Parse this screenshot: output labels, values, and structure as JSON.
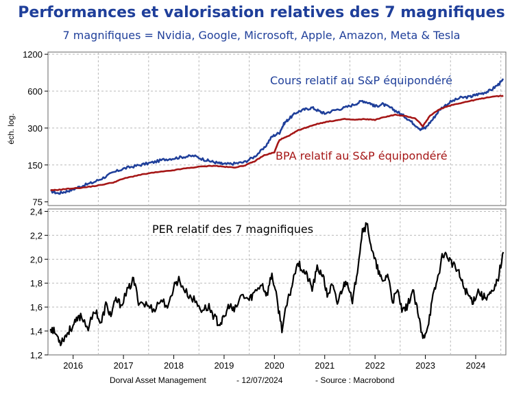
{
  "header": {
    "title": "Performances et valorisation relatives des 7 magnifiques",
    "subtitle": "7 magnifiques = Nvidia, Google, Microsoft, Apple, Amazon, Meta & Tesla"
  },
  "footer": {
    "source_org": "Dorval Asset Management",
    "date": "- 12/07/2024",
    "source": "-   Source : Macrobond"
  },
  "colors": {
    "blue": "#1f3f9a",
    "red": "#a51616",
    "black": "#000000",
    "grid": "#b8b8b8"
  },
  "chart_data": [
    {
      "type": "line",
      "panel": "top",
      "yscale": "log",
      "ylabel": "éch. log.",
      "yticks": [
        75,
        150,
        300,
        600,
        1200
      ],
      "ytick_labels": [
        "75",
        "150",
        "300",
        "600",
        "1200"
      ],
      "ylim": [
        70,
        1250
      ],
      "xlim": [
        2015.5,
        2024.6
      ],
      "series": [
        {
          "name": "Cours relatif au S&P équipondéré",
          "color": "#1f3f9a",
          "x": [
            2015.55,
            2015.7,
            2015.85,
            2016.0,
            2016.2,
            2016.4,
            2016.6,
            2016.8,
            2017.0,
            2017.2,
            2017.4,
            2017.6,
            2017.8,
            2018.0,
            2018.2,
            2018.4,
            2018.6,
            2018.75,
            2018.9,
            2019.0,
            2019.2,
            2019.4,
            2019.6,
            2019.8,
            2019.95,
            2020.1,
            2020.2,
            2020.3,
            2020.45,
            2020.6,
            2020.75,
            2020.9,
            2021.0,
            2021.2,
            2021.4,
            2021.6,
            2021.75,
            2021.9,
            2022.0,
            2022.15,
            2022.3,
            2022.45,
            2022.6,
            2022.75,
            2022.9,
            2023.0,
            2023.15,
            2023.3,
            2023.5,
            2023.7,
            2023.9,
            2024.0,
            2024.15,
            2024.3,
            2024.45,
            2024.55
          ],
          "values": [
            92,
            88,
            91,
            95,
            102,
            108,
            118,
            130,
            140,
            146,
            152,
            158,
            166,
            170,
            175,
            178,
            166,
            160,
            155,
            152,
            154,
            158,
            175,
            205,
            255,
            275,
            330,
            360,
            405,
            425,
            440,
            410,
            395,
            420,
            440,
            470,
            500,
            480,
            450,
            470,
            440,
            405,
            370,
            330,
            295,
            300,
            355,
            430,
            490,
            530,
            540,
            560,
            580,
            610,
            680,
            740
          ]
        },
        {
          "name": "BPA relatif au S&P équipondéré",
          "color": "#a51616",
          "x": [
            2015.55,
            2015.7,
            2015.9,
            2016.2,
            2016.5,
            2016.8,
            2017.0,
            2017.3,
            2017.6,
            2017.9,
            2018.2,
            2018.5,
            2018.8,
            2019.0,
            2019.2,
            2019.4,
            2019.6,
            2019.8,
            2020.0,
            2020.1,
            2020.3,
            2020.45,
            2020.6,
            2020.8,
            2021.0,
            2021.2,
            2021.4,
            2021.6,
            2021.8,
            2022.0,
            2022.2,
            2022.4,
            2022.6,
            2022.8,
            2022.95,
            2023.1,
            2023.3,
            2023.5,
            2023.7,
            2023.9,
            2024.1,
            2024.3,
            2024.55
          ],
          "values": [
            93,
            94,
            96,
            98,
            102,
            108,
            116,
            124,
            130,
            134,
            140,
            145,
            148,
            145,
            143,
            148,
            160,
            180,
            190,
            240,
            260,
            285,
            300,
            320,
            335,
            345,
            355,
            350,
            355,
            350,
            370,
            385,
            375,
            360,
            310,
            380,
            430,
            460,
            480,
            500,
            520,
            540,
            550
          ]
        }
      ],
      "annotations": [
        "Cours relatif au S&P équipondéré",
        "BPA relatif au S&P équipondéré"
      ]
    },
    {
      "type": "line",
      "panel": "bottom",
      "yticks": [
        1.2,
        1.4,
        1.6,
        1.8,
        2.0,
        2.2,
        2.4
      ],
      "ytick_labels": [
        "1,2",
        "1,4",
        "1,6",
        "1,8",
        "2,0",
        "2,2",
        "2,4"
      ],
      "ylim": [
        1.2,
        2.42
      ],
      "xlim": [
        2015.5,
        2024.6
      ],
      "xticks": [
        2016,
        2017,
        2018,
        2019,
        2020,
        2021,
        2022,
        2023,
        2024
      ],
      "series": [
        {
          "name": "PER relatif des 7 magnifiques",
          "color": "#000000",
          "x": [
            2015.55,
            2015.65,
            2015.75,
            2015.85,
            2015.95,
            2016.05,
            2016.15,
            2016.3,
            2016.45,
            2016.55,
            2016.65,
            2016.75,
            2016.85,
            2016.95,
            2017.1,
            2017.2,
            2017.3,
            2017.45,
            2017.6,
            2017.75,
            2017.9,
            2018.0,
            2018.1,
            2018.25,
            2018.4,
            2018.55,
            2018.7,
            2018.8,
            2018.9,
            2019.0,
            2019.1,
            2019.2,
            2019.35,
            2019.5,
            2019.6,
            2019.75,
            2019.85,
            2019.95,
            2020.05,
            2020.15,
            2020.25,
            2020.35,
            2020.45,
            2020.55,
            2020.65,
            2020.75,
            2020.85,
            2020.95,
            2021.05,
            2021.15,
            2021.25,
            2021.35,
            2021.45,
            2021.55,
            2021.65,
            2021.75,
            2021.85,
            2021.95,
            2022.05,
            2022.15,
            2022.25,
            2022.35,
            2022.45,
            2022.55,
            2022.65,
            2022.75,
            2022.85,
            2022.95,
            2023.05,
            2023.15,
            2023.25,
            2023.35,
            2023.45,
            2023.55,
            2023.65,
            2023.75,
            2023.85,
            2023.95,
            2024.05,
            2024.15,
            2024.25,
            2024.35,
            2024.45,
            2024.55
          ],
          "values": [
            1.43,
            1.38,
            1.31,
            1.36,
            1.42,
            1.47,
            1.53,
            1.43,
            1.58,
            1.45,
            1.62,
            1.53,
            1.66,
            1.62,
            1.75,
            1.83,
            1.65,
            1.62,
            1.58,
            1.66,
            1.6,
            1.78,
            1.83,
            1.72,
            1.66,
            1.58,
            1.6,
            1.52,
            1.46,
            1.5,
            1.62,
            1.56,
            1.7,
            1.66,
            1.72,
            1.8,
            1.7,
            1.88,
            1.66,
            1.42,
            1.62,
            1.78,
            1.98,
            1.92,
            1.86,
            1.75,
            1.92,
            1.88,
            1.7,
            1.78,
            1.63,
            1.76,
            1.83,
            1.62,
            1.92,
            2.25,
            2.28,
            2.05,
            1.92,
            1.8,
            1.88,
            1.65,
            1.73,
            1.55,
            1.62,
            1.74,
            1.55,
            1.33,
            1.45,
            1.68,
            1.85,
            2.05,
            2.02,
            1.95,
            1.9,
            1.78,
            1.7,
            1.65,
            1.74,
            1.68,
            1.7,
            1.72,
            1.85,
            2.06
          ]
        }
      ],
      "annotations": [
        "PER relatif des 7 magnifiques"
      ]
    }
  ]
}
